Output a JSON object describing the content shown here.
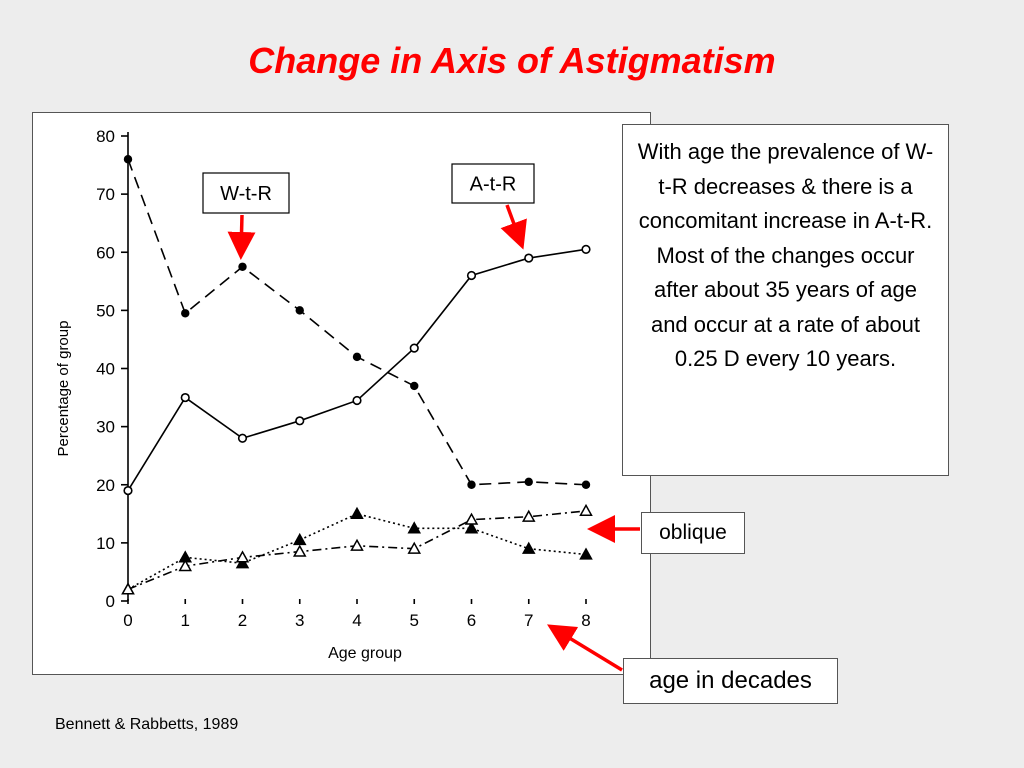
{
  "slide": {
    "title": "Change in Axis of Astigmatism",
    "citation": "Bennett & Rabbetts, 1989",
    "note": "With age the prevalence of W-t-R decreases & there is a concomitant increase in A-t-R. Most of the changes occur after about 35 years of age and occur at a rate of about 0.25 D every 10 years.",
    "oblique_label": "oblique",
    "decades_label": "age in decades",
    "wtr_label": "W-t-R",
    "atr_label": "A-t-R",
    "accent_color": "#ff0000"
  },
  "chart_data": {
    "type": "line",
    "xlabel": "Age group",
    "ylabel": "Percentage of group",
    "x": [
      0,
      1,
      2,
      3,
      4,
      5,
      6,
      7,
      8
    ],
    "xlim": [
      0,
      8
    ],
    "ylim": [
      0,
      80
    ],
    "xticks": [
      "0",
      "1",
      "2",
      "3",
      "4",
      "5",
      "6",
      "7",
      "8"
    ],
    "yticks": [
      "0",
      "10",
      "20",
      "30",
      "40",
      "50",
      "60",
      "70",
      "80"
    ],
    "grid": false,
    "series": [
      {
        "name": "W-t-R",
        "marker": "filled-circle",
        "line": "dashed",
        "values": [
          76,
          49.5,
          57.5,
          50,
          42,
          37,
          20,
          20.5,
          20
        ]
      },
      {
        "name": "A-t-R",
        "marker": "open-circle",
        "line": "solid",
        "values": [
          19,
          35,
          28,
          31,
          34.5,
          43.5,
          56,
          59,
          60.5
        ]
      },
      {
        "marker": "filled-triangle",
        "line": "dotted",
        "values": [
          2,
          7.5,
          6.5,
          10.5,
          15,
          12.5,
          12.5,
          9,
          8
        ]
      },
      {
        "marker": "open-triangle",
        "line": "dash-dot",
        "values": [
          2,
          6,
          7.5,
          8.5,
          9.5,
          9,
          14,
          14.5,
          15.5
        ]
      }
    ]
  }
}
